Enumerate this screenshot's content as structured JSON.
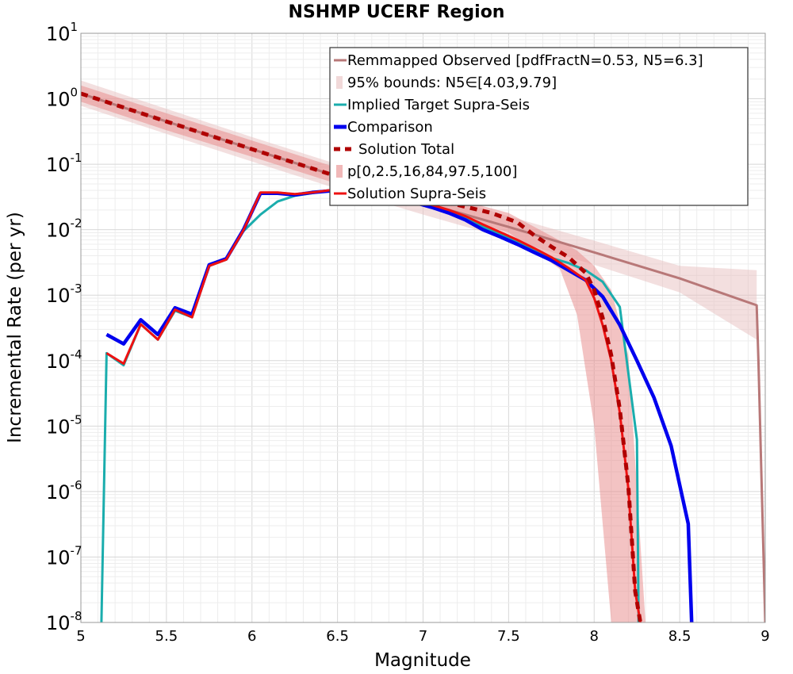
{
  "chart_data": {
    "type": "line",
    "title": "NSHMP UCERF Region",
    "xlabel": "Magnitude",
    "ylabel": "Incremental Rate (per yr)",
    "xlim": [
      5,
      9
    ],
    "ylim": [
      1e-08,
      10
    ],
    "y_scale": "log",
    "x_ticks": [
      "5",
      "5.5",
      "6",
      "6.5",
      "7",
      "7.5",
      "8",
      "8.5",
      "9"
    ],
    "y_ticks": [
      {
        "base": "10",
        "exp": "1",
        "value": 10
      },
      {
        "base": "10",
        "exp": "0",
        "value": 1
      },
      {
        "base": "10",
        "exp": "-1",
        "value": 0.1
      },
      {
        "base": "10",
        "exp": "-2",
        "value": 0.01
      },
      {
        "base": "10",
        "exp": "-3",
        "value": 0.001
      },
      {
        "base": "10",
        "exp": "-4",
        "value": 0.0001
      },
      {
        "base": "10",
        "exp": "-5",
        "value": 1e-05
      },
      {
        "base": "10",
        "exp": "-6",
        "value": 1e-06
      },
      {
        "base": "10",
        "exp": "-7",
        "value": 1e-07
      },
      {
        "base": "10",
        "exp": "-8",
        "value": 1e-08
      }
    ],
    "grid": true,
    "legend_position": "top-right",
    "series": [
      {
        "name": "Remmapped Observed [pdfFractN=0.53, N5=6.3]",
        "color": "#b87878",
        "style": "solid",
        "x": [
          5.0,
          5.5,
          6.0,
          6.5,
          7.0,
          7.5,
          8.0,
          8.5,
          8.95,
          8.96,
          9.0
        ],
        "y": [
          1.2,
          0.45,
          0.17,
          0.065,
          0.026,
          0.011,
          0.0045,
          0.0018,
          0.0007,
          0.0001,
          1e-08
        ]
      },
      {
        "name": "95% bounds: N5∈[4.03,9.79]",
        "color": "#e8c0c0",
        "style": "band",
        "x": [
          5.0,
          5.5,
          6.0,
          6.5,
          7.0,
          7.5,
          8.0,
          8.5,
          8.95
        ],
        "lower": [
          0.78,
          0.29,
          0.11,
          0.042,
          0.017,
          0.0072,
          0.0029,
          0.0011,
          0.00021
        ],
        "upper": [
          1.9,
          0.7,
          0.26,
          0.1,
          0.04,
          0.016,
          0.0068,
          0.0028,
          0.0024
        ]
      },
      {
        "name": "Implied Target Supra-Seis",
        "color": "#1aadad",
        "style": "solid",
        "x": [
          5.12,
          5.15,
          5.25,
          5.35,
          5.45,
          5.55,
          5.65,
          5.75,
          5.85,
          5.95,
          6.05,
          6.15,
          6.25,
          6.35,
          6.45,
          6.55,
          6.65,
          6.75,
          6.85,
          6.95,
          7.05,
          7.15,
          7.25,
          7.35,
          7.45,
          7.55,
          7.65,
          7.75,
          7.85,
          7.95,
          8.05,
          8.15,
          8.25,
          8.26,
          8.27
        ],
        "y": [
          1e-08,
          0.00013,
          8.5e-05,
          0.00036,
          0.00021,
          0.00058,
          0.00046,
          0.0028,
          0.0035,
          0.0095,
          0.017,
          0.027,
          0.033,
          0.036,
          0.04,
          0.041,
          0.039,
          0.036,
          0.032,
          0.027,
          0.023,
          0.019,
          0.015,
          0.011,
          0.0085,
          0.0065,
          0.0048,
          0.0037,
          0.0031,
          0.0024,
          0.0016,
          0.00066,
          6.2e-06,
          1e-08,
          1e-08
        ]
      },
      {
        "name": "Comparison",
        "color": "#0000ee",
        "style": "thick",
        "x": [
          5.15,
          5.25,
          5.35,
          5.45,
          5.55,
          5.65,
          5.75,
          5.85,
          5.95,
          6.05,
          6.15,
          6.25,
          6.35,
          6.45,
          6.55,
          6.65,
          6.75,
          6.85,
          6.95,
          7.05,
          7.15,
          7.25,
          7.35,
          7.45,
          7.55,
          7.65,
          7.75,
          7.85,
          7.95,
          8.05,
          8.15,
          8.25,
          8.35,
          8.45,
          8.55,
          8.57
        ],
        "y": [
          0.00025,
          0.00018,
          0.00042,
          0.00025,
          0.00064,
          0.00051,
          0.0029,
          0.0036,
          0.01,
          0.036,
          0.036,
          0.034,
          0.037,
          0.039,
          0.04,
          0.038,
          0.035,
          0.031,
          0.026,
          0.022,
          0.018,
          0.014,
          0.01,
          0.0078,
          0.006,
          0.0045,
          0.0034,
          0.0024,
          0.0017,
          0.00095,
          0.00035,
          0.0001,
          2.7e-05,
          5e-06,
          3.2e-07,
          1e-08
        ]
      },
      {
        "name": "Solution Total",
        "color": "#b00000",
        "style": "dashed",
        "x": [
          5.0,
          5.5,
          6.0,
          6.5,
          7.0,
          7.2,
          7.4,
          7.55,
          7.65,
          7.75,
          7.85,
          7.95,
          8.0,
          8.05,
          8.1,
          8.15,
          8.2,
          8.24,
          8.27
        ],
        "y": [
          1.2,
          0.45,
          0.17,
          0.065,
          0.03,
          0.024,
          0.018,
          0.013,
          0.0082,
          0.0055,
          0.0038,
          0.0022,
          0.0012,
          0.00045,
          0.00012,
          1.8e-05,
          1.2e-06,
          3e-08,
          1e-08
        ]
      },
      {
        "name": "p[0,2.5,16,84,97.5,100]",
        "color": "#e88888",
        "style": "band",
        "x": [
          5.0,
          5.5,
          6.0,
          6.5,
          7.0,
          7.5,
          7.8,
          7.9,
          8.0,
          8.1,
          8.2,
          8.3
        ],
        "lower": [
          0.9,
          0.33,
          0.13,
          0.05,
          0.023,
          0.009,
          0.0025,
          0.0005,
          1e-05,
          1e-08,
          1e-08,
          1e-08
        ],
        "upper": [
          1.6,
          0.6,
          0.23,
          0.088,
          0.04,
          0.018,
          0.0068,
          0.0048,
          0.0028,
          0.0012,
          0.00012,
          1e-08
        ]
      },
      {
        "name": "Solution Supra-Seis",
        "color": "#ee1111",
        "style": "solid",
        "x": [
          5.15,
          5.25,
          5.35,
          5.45,
          5.55,
          5.65,
          5.75,
          5.85,
          5.95,
          6.05,
          6.15,
          6.25,
          6.35,
          6.45,
          6.55,
          6.65,
          6.75,
          6.85,
          6.95,
          7.05,
          7.15,
          7.25,
          7.35,
          7.45,
          7.55,
          7.65,
          7.75,
          7.85,
          7.95,
          8.0,
          8.05,
          8.1,
          8.15,
          8.2,
          8.24,
          8.27
        ],
        "y": [
          0.00013,
          9e-05,
          0.00036,
          0.00021,
          0.0006,
          0.00046,
          0.0028,
          0.0035,
          0.0098,
          0.037,
          0.037,
          0.035,
          0.037,
          0.04,
          0.041,
          0.039,
          0.036,
          0.032,
          0.028,
          0.024,
          0.02,
          0.016,
          0.012,
          0.0092,
          0.007,
          0.0052,
          0.0038,
          0.0026,
          0.0017,
          0.0009,
          0.00035,
          0.0001,
          1.6e-05,
          1.1e-06,
          3e-08,
          1e-08
        ]
      }
    ]
  }
}
